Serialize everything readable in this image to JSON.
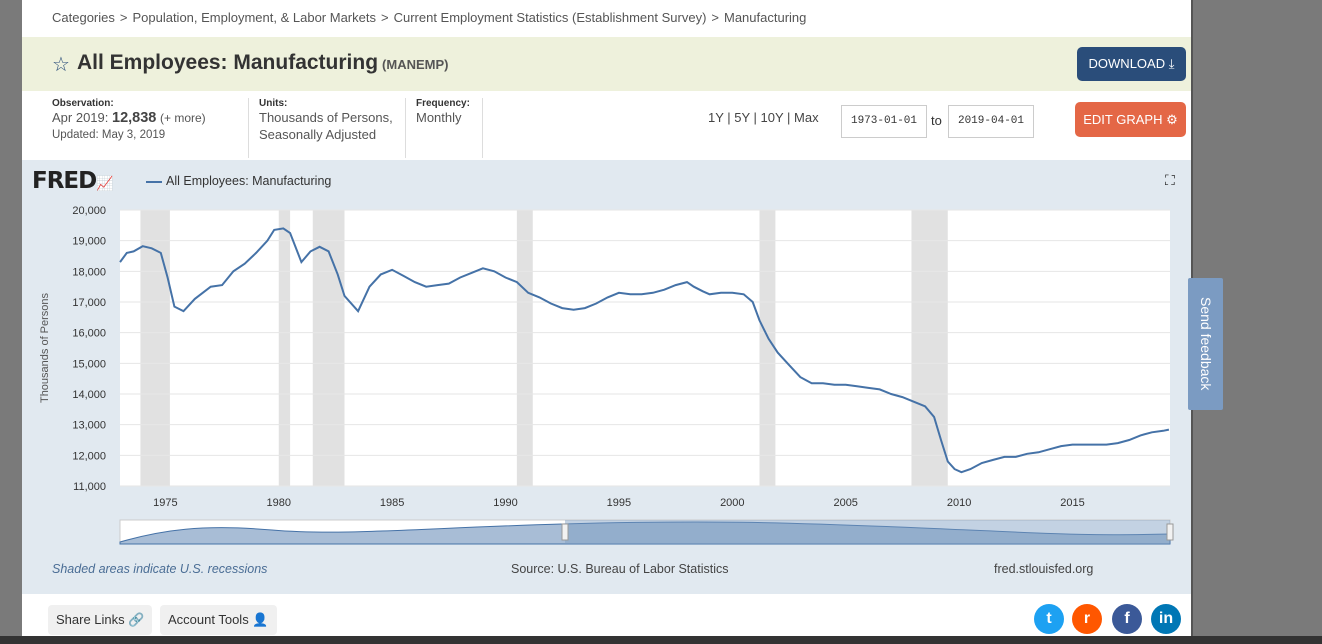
{
  "breadcrumbs": [
    "Categories",
    "Population, Employment, & Labor Markets",
    "Current Employment Statistics (Establishment Survey)",
    "Manufacturing"
  ],
  "breadcrumb_sep": ">",
  "series_title": "All Employees: Manufacturing",
  "series_code": "(MANEMP)",
  "download_label": "DOWNLOAD",
  "observation": {
    "label": "Observation:",
    "period": "Apr 2019:",
    "value": "12,838",
    "more": "(+ more)",
    "updated": "Updated: May 3, 2019"
  },
  "units": {
    "label": "Units:",
    "line1": "Thousands of Persons,",
    "line2": "Seasonally Adjusted"
  },
  "frequency": {
    "label": "Frequency:",
    "value": "Monthly"
  },
  "range_links": "1Y | 5Y | 10Y | Max",
  "date_from": "1973-01-01",
  "date_to": "2019-04-01",
  "to_label": "to",
  "edit_label": "EDIT GRAPH",
  "fred_logo": "FRED",
  "footer": {
    "recessions": "Shaded areas indicate U.S. recessions",
    "source": "Source: U.S. Bureau of Labor Statistics",
    "site": "fred.stlouisfed.org"
  },
  "share_links": "Share Links",
  "account_tools": "Account Tools",
  "feedback": "Send feedback",
  "colors": {
    "line": "#4572a7",
    "recession": "#e1e1e1",
    "accent": "#2a4d7a",
    "edit": "#e46746"
  },
  "chart_data": {
    "type": "line",
    "series": [
      {
        "name": "All Employees: Manufacturing",
        "x": [
          1973.0,
          1973.3,
          1973.6,
          1974.0,
          1974.4,
          1974.8,
          1975.1,
          1975.4,
          1975.8,
          1976.3,
          1977.0,
          1977.5,
          1978.0,
          1978.5,
          1979.0,
          1979.5,
          1979.8,
          1980.2,
          1980.5,
          1981.0,
          1981.4,
          1981.8,
          1982.2,
          1982.6,
          1982.9,
          1983.5,
          1984.0,
          1984.5,
          1985.0,
          1985.5,
          1986.0,
          1986.5,
          1987.0,
          1987.5,
          1988.0,
          1988.5,
          1989.0,
          1989.5,
          1990.0,
          1990.5,
          1991.0,
          1991.5,
          1992.0,
          1992.5,
          1993.0,
          1993.5,
          1994.0,
          1994.5,
          1995.0,
          1995.5,
          1996.0,
          1996.5,
          1997.0,
          1997.5,
          1998.0,
          1998.3,
          1998.7,
          1999.0,
          1999.5,
          2000.0,
          2000.5,
          2000.9,
          2001.2,
          2001.6,
          2002.0,
          2002.5,
          2003.0,
          2003.5,
          2004.0,
          2004.5,
          2005.0,
          2005.5,
          2006.0,
          2006.5,
          2007.0,
          2007.5,
          2008.0,
          2008.5,
          2008.9,
          2009.2,
          2009.5,
          2009.8,
          2010.1,
          2010.5,
          2011.0,
          2011.5,
          2012.0,
          2012.5,
          2013.0,
          2013.5,
          2014.0,
          2014.5,
          2015.0,
          2015.5,
          2016.0,
          2016.5,
          2017.0,
          2017.5,
          2018.0,
          2018.5,
          2019.0,
          2019.25
        ],
        "y": [
          18300,
          18600,
          18650,
          18820,
          18750,
          18600,
          17800,
          16850,
          16700,
          17100,
          17500,
          17550,
          18000,
          18250,
          18600,
          19000,
          19350,
          19400,
          19250,
          18300,
          18650,
          18800,
          18650,
          17900,
          17200,
          16700,
          17500,
          17900,
          18050,
          17850,
          17650,
          17500,
          17550,
          17600,
          17800,
          17950,
          18100,
          18000,
          17800,
          17650,
          17300,
          17150,
          16950,
          16800,
          16750,
          16800,
          16950,
          17150,
          17300,
          17250,
          17250,
          17300,
          17400,
          17550,
          17650,
          17500,
          17350,
          17250,
          17300,
          17300,
          17250,
          17000,
          16400,
          15800,
          15350,
          14950,
          14550,
          14350,
          14350,
          14300,
          14300,
          14250,
          14200,
          14150,
          14000,
          13900,
          13750,
          13600,
          13250,
          12500,
          11800,
          11550,
          11450,
          11550,
          11750,
          11850,
          11950,
          11950,
          12050,
          12100,
          12200,
          12300,
          12350,
          12350,
          12350,
          12350,
          12400,
          12500,
          12650,
          12750,
          12800,
          12838
        ]
      }
    ],
    "recessions": [
      [
        1973.9,
        1975.2
      ],
      [
        1980.0,
        1980.5
      ],
      [
        1981.5,
        1982.9
      ],
      [
        1990.5,
        1991.2
      ],
      [
        2001.2,
        2001.9
      ],
      [
        2007.9,
        2009.5
      ]
    ],
    "xlim": [
      1973.0,
      2019.3
    ],
    "ylim": [
      11000,
      20000
    ],
    "ylabel": "Thousands of Persons",
    "xticks": [
      1975,
      1980,
      1985,
      1990,
      1995,
      2000,
      2005,
      2010,
      2015
    ],
    "yticks": [
      11000,
      12000,
      13000,
      14000,
      15000,
      16000,
      17000,
      18000,
      19000,
      20000
    ],
    "ytick_labels": [
      "11,000",
      "12,000",
      "13,000",
      "14,000",
      "15,000",
      "16,000",
      "17,000",
      "18,000",
      "19,000",
      "20,000"
    ],
    "grid": true,
    "legend": "top-left"
  }
}
